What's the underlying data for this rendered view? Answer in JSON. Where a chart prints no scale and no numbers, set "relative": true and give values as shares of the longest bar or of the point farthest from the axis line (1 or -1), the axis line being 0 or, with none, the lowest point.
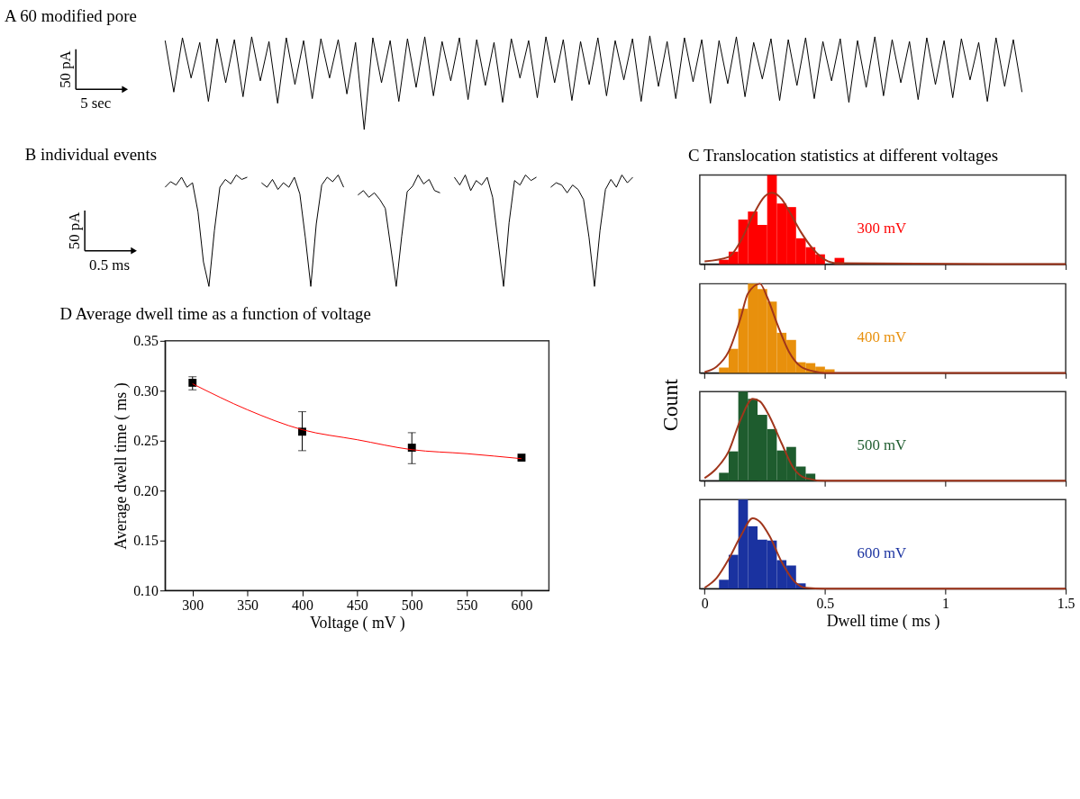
{
  "chart_data": [
    {
      "type": "line",
      "title": "A 60 modified pore",
      "relative": true,
      "annotations": [
        "50 pA",
        "5 sec"
      ],
      "categories": [
        null,
        null,
        null,
        null,
        null,
        null,
        null,
        null,
        null,
        null,
        null,
        null,
        null,
        null,
        null,
        null,
        null,
        null,
        null,
        null,
        null,
        null,
        null,
        null,
        null,
        null,
        null,
        null,
        null,
        null,
        null,
        null,
        null,
        null,
        null,
        null,
        null,
        null,
        null,
        null,
        null,
        null,
        null,
        null,
        null,
        null,
        null,
        null,
        null,
        null,
        null,
        null,
        null,
        null,
        null,
        null,
        null,
        null,
        null,
        null,
        null,
        null,
        null,
        null,
        null,
        null,
        null,
        null,
        null,
        null,
        null,
        null,
        null,
        null,
        null,
        null,
        null,
        null,
        null,
        null,
        null,
        null,
        null,
        null,
        null,
        null,
        null,
        null,
        null,
        null,
        null,
        null,
        null,
        null,
        null,
        null,
        null,
        null,
        null,
        null
      ],
      "series": [
        {
          "color": "#000000",
          "values": [
            0.95,
            0.4,
            0.98,
            0.55,
            0.93,
            0.3,
            0.97,
            0.5,
            0.96,
            0.35,
            0.99,
            0.52,
            0.94,
            0.28,
            0.98,
            0.48,
            0.95,
            0.33,
            0.97,
            0.55,
            0.96,
            0.38,
            0.93,
            0.0,
            0.98,
            0.5,
            0.95,
            0.3,
            0.97,
            0.45,
            0.99,
            0.36,
            0.94,
            0.52,
            0.98,
            0.32,
            0.96,
            0.47,
            0.93,
            0.29,
            0.97,
            0.55,
            0.95,
            0.34,
            0.99,
            0.5,
            0.96,
            0.31,
            0.94,
            0.48,
            0.98,
            0.36,
            0.95,
            0.53,
            0.97,
            0.3,
            1.0,
            0.46,
            0.94,
            0.33,
            0.98,
            0.51,
            0.96,
            0.28,
            0.95,
            0.49,
            0.99,
            0.35,
            0.93,
            0.54,
            0.97,
            0.31,
            0.96,
            0.47,
            0.98,
            0.33,
            0.94,
            0.52,
            0.97,
            0.29,
            0.95,
            0.45,
            0.99,
            0.36,
            0.96,
            0.5,
            0.94,
            0.32,
            0.98,
            0.48,
            0.95,
            0.34,
            0.97,
            0.53,
            0.93,
            0.3,
            0.98,
            0.46,
            0.96,
            0.4
          ]
        }
      ]
    },
    {
      "type": "line",
      "title": "B individual events",
      "relative": true,
      "annotations": [
        "50 pA",
        "0.5 ms"
      ],
      "categories": [
        null,
        null,
        null,
        null,
        null,
        null,
        null,
        null,
        null,
        null,
        null,
        null,
        null,
        null,
        null,
        null
      ],
      "series": [
        {
          "color": "#000000",
          "values": [
            0.89,
            0.94,
            0.91,
            0.98,
            0.89,
            0.93,
            0.67,
            0.22,
            0.0,
            0.5,
            0.89,
            0.96,
            0.92,
            1.0,
            0.96,
            0.98
          ]
        }
      ]
    },
    {
      "type": "line",
      "relative": true,
      "categories": [
        null,
        null,
        null,
        null,
        null,
        null,
        null,
        null,
        null,
        null,
        null,
        null,
        null,
        null,
        null,
        null
      ],
      "series": [
        {
          "color": "#000000",
          "values": [
            0.93,
            0.89,
            0.96,
            0.87,
            0.93,
            0.89,
            0.98,
            0.83,
            0.44,
            0.0,
            0.56,
            0.91,
            0.98,
            0.94,
            1.0,
            0.89
          ]
        }
      ]
    },
    {
      "type": "line",
      "relative": true,
      "categories": [
        null,
        null,
        null,
        null,
        null,
        null,
        null,
        null,
        null,
        null,
        null,
        null,
        null,
        null,
        null,
        null
      ],
      "series": [
        {
          "color": "#000000",
          "values": [
            0.82,
            0.86,
            0.8,
            0.84,
            0.78,
            0.7,
            0.35,
            0.0,
            0.45,
            0.85,
            0.9,
            1.0,
            0.92,
            0.96,
            0.86,
            0.84
          ]
        }
      ]
    },
    {
      "type": "line",
      "relative": true,
      "categories": [
        null,
        null,
        null,
        null,
        null,
        null,
        null,
        null,
        null,
        null,
        null,
        null,
        null,
        null,
        null,
        null
      ],
      "series": [
        {
          "color": "#000000",
          "values": [
            0.98,
            0.91,
            1.0,
            0.86,
            0.95,
            0.91,
            0.98,
            0.8,
            0.4,
            0.0,
            0.57,
            0.95,
            0.91,
            1.0,
            0.95,
            0.98
          ]
        }
      ]
    },
    {
      "type": "line",
      "relative": true,
      "categories": [
        null,
        null,
        null,
        null,
        null,
        null,
        null,
        null,
        null,
        null,
        null,
        null,
        null,
        null,
        null,
        null
      ],
      "series": [
        {
          "color": "#000000",
          "values": [
            0.89,
            0.93,
            0.91,
            0.84,
            0.91,
            0.87,
            0.78,
            0.44,
            0.0,
            0.5,
            0.87,
            0.96,
            0.89,
            1.0,
            0.93,
            0.98
          ]
        }
      ]
    },
    {
      "type": "histogram",
      "title": "C Translocation statistics at different voltages",
      "ylabel": "Count",
      "relative": true,
      "tick_labels": false,
      "xlim": [
        -0.02,
        1.5
      ],
      "xticks": [
        0,
        0.5,
        1,
        1.5
      ],
      "bins": [
        0.06,
        0.1,
        0.14,
        0.18,
        0.22,
        0.26,
        0.3,
        0.34,
        0.38,
        0.42,
        0.46,
        0.5,
        0.54,
        0.58
      ],
      "series": [
        {
          "name": "300 mV",
          "color": "#ff0000",
          "values": [
            0.05,
            0.14,
            0.5,
            0.59,
            0.44,
            1.0,
            0.68,
            0.64,
            0.29,
            0.19,
            0.11,
            0,
            0.07
          ]
        },
        {
          "type": "line",
          "color": "#a0361c",
          "x": [
            0,
            0.1,
            0.15,
            0.2,
            0.25,
            0.28,
            0.32,
            0.35,
            0.4,
            0.45,
            0.5,
            0.55,
            1.5
          ],
          "values": [
            0.03,
            0.08,
            0.26,
            0.54,
            0.76,
            0.8,
            0.73,
            0.6,
            0.36,
            0.17,
            0.05,
            0.01,
            0
          ]
        }
      ]
    },
    {
      "type": "histogram",
      "relative": true,
      "tick_labels": false,
      "xlim": [
        -0.02,
        1.5
      ],
      "xticks": [
        0,
        0.5,
        1,
        1.5
      ],
      "bins": [
        0.06,
        0.1,
        0.14,
        0.18,
        0.22,
        0.26,
        0.3,
        0.34,
        0.38,
        0.42,
        0.46,
        0.5,
        0.54
      ],
      "series": [
        {
          "name": "400 mV",
          "color": "#e8900c",
          "values": [
            0.06,
            0.27,
            0.72,
            1.0,
            0.94,
            0.8,
            0.45,
            0.37,
            0.12,
            0.11,
            0.07,
            0.04
          ]
        },
        {
          "type": "line",
          "color": "#a0361c",
          "x": [
            0,
            0.05,
            0.1,
            0.15,
            0.18,
            0.23,
            0.26,
            0.3,
            0.35,
            0.4,
            0.45,
            0.5,
            1.5
          ],
          "values": [
            0.01,
            0.07,
            0.24,
            0.62,
            0.89,
            1.0,
            0.85,
            0.56,
            0.24,
            0.07,
            0.02,
            0,
            0
          ]
        }
      ]
    },
    {
      "type": "histogram",
      "relative": true,
      "tick_labels": false,
      "xlim": [
        -0.02,
        1.5
      ],
      "xticks": [
        0,
        0.5,
        1,
        1.5
      ],
      "bins": [
        0.06,
        0.1,
        0.14,
        0.18,
        0.22,
        0.26,
        0.3,
        0.34,
        0.38,
        0.42,
        0.46
      ],
      "series": [
        {
          "name": "500 mV",
          "color": "#1e5c2e",
          "values": [
            0.09,
            0.33,
            1.0,
            0.92,
            0.74,
            0.58,
            0.34,
            0.38,
            0.16,
            0.08
          ]
        },
        {
          "type": "line",
          "color": "#a0361c",
          "x": [
            0,
            0.05,
            0.1,
            0.15,
            0.2,
            0.23,
            0.27,
            0.32,
            0.37,
            0.42,
            0.5,
            1.5
          ],
          "values": [
            0.03,
            0.14,
            0.33,
            0.69,
            0.92,
            0.89,
            0.72,
            0.42,
            0.14,
            0.03,
            0,
            0
          ]
        }
      ]
    },
    {
      "type": "histogram",
      "xlabel": "Dwell time ( ms )",
      "relative": true,
      "tick_labels": "x",
      "xlim": [
        -0.02,
        1.5
      ],
      "xticks": [
        0,
        0.5,
        1,
        1.5
      ],
      "bins": [
        0.06,
        0.1,
        0.14,
        0.18,
        0.22,
        0.26,
        0.3,
        0.34,
        0.38,
        0.42
      ],
      "series": [
        {
          "name": "600 mV",
          "color": "#1a32a0",
          "values": [
            0.1,
            0.38,
            1.0,
            0.7,
            0.55,
            0.54,
            0.32,
            0.26,
            0.06
          ]
        },
        {
          "type": "line",
          "color": "#a0361c",
          "x": [
            0,
            0.05,
            0.1,
            0.15,
            0.2,
            0.23,
            0.27,
            0.32,
            0.37,
            0.42,
            0.5,
            1.5
          ],
          "values": [
            0.01,
            0.12,
            0.33,
            0.59,
            0.79,
            0.75,
            0.59,
            0.3,
            0.09,
            0.01,
            0,
            0
          ]
        }
      ]
    },
    {
      "type": "scatter",
      "title": "D Average dwell time as a function of voltage",
      "xlabel": "Voltage ( mV )",
      "ylabel": "Average dwell time ( ms )",
      "xlim": [
        275,
        625
      ],
      "xticks": [
        300,
        350,
        400,
        450,
        500,
        550,
        600
      ],
      "ylim": [
        0.1,
        0.35
      ],
      "yticks": [
        {
          "value": 0.1,
          "label": "0.10"
        },
        0.15,
        {
          "value": 0.2,
          "label": "0.20"
        },
        0.25,
        {
          "value": 0.3,
          "label": "0.30"
        },
        0.35
      ],
      "series": [
        {
          "type": "scatter",
          "color": "#000000",
          "marker": "square",
          "x": [
            300,
            400,
            500,
            600
          ],
          "values": [
            0.308,
            0.259,
            0.243,
            0.233
          ],
          "errors": [
            [
              0.301,
              0.314
            ],
            [
              0.24,
              0.279
            ],
            [
              0.227,
              0.258
            ],
            null
          ]
        },
        {
          "type": "line",
          "color": "#ff0000",
          "x": [
            300,
            350,
            400,
            450,
            500,
            550,
            600
          ],
          "values": [
            0.307,
            0.281,
            0.261,
            0.251,
            0.241,
            0.237,
            0.232
          ]
        }
      ]
    }
  ]
}
